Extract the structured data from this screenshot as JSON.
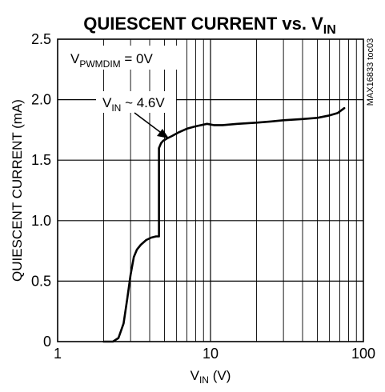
{
  "chart_data": {
    "type": "line",
    "title": {
      "main": "QUIESCENT CURRENT vs. V",
      "sub": "IN"
    },
    "xlabel": {
      "main": "V",
      "sub": "IN",
      "unit": " (V)"
    },
    "ylabel": "QUIESCENT CURRENT (mA)",
    "x_scale": "log",
    "xlim": [
      1,
      100
    ],
    "ylim": [
      0,
      2.5
    ],
    "x_ticks": [
      "1",
      "10",
      "100"
    ],
    "y_ticks": [
      "0",
      "0.5",
      "1.0",
      "1.5",
      "2.0",
      "2.5"
    ],
    "grid": true,
    "series": [
      {
        "x": [
          2.0,
          2.3,
          2.5,
          2.7,
          2.85,
          3.0,
          3.15,
          3.3,
          3.5,
          3.8,
          4.1,
          4.4,
          4.6,
          4.6,
          4.75,
          4.9,
          5.2,
          5.6,
          6.2,
          7.0,
          8.0,
          9.5,
          10.5,
          12.0,
          15.0,
          20.0,
          25.0,
          30.0,
          40.0,
          50.0,
          60.0,
          68.0,
          75.0
        ],
        "y": [
          0.0,
          0.0,
          0.03,
          0.15,
          0.35,
          0.55,
          0.7,
          0.76,
          0.8,
          0.84,
          0.86,
          0.87,
          0.87,
          1.6,
          1.64,
          1.66,
          1.68,
          1.7,
          1.73,
          1.76,
          1.78,
          1.8,
          1.79,
          1.79,
          1.8,
          1.81,
          1.82,
          1.83,
          1.84,
          1.85,
          1.87,
          1.89,
          1.93
        ]
      }
    ],
    "annotations": [
      {
        "main": "V",
        "sub": "PWMDIM",
        "rest": " = 0V"
      },
      {
        "main": "V",
        "sub": "IN",
        "rest": " ~ 4.6V"
      }
    ],
    "side_label": "MAX16833 toc03"
  }
}
